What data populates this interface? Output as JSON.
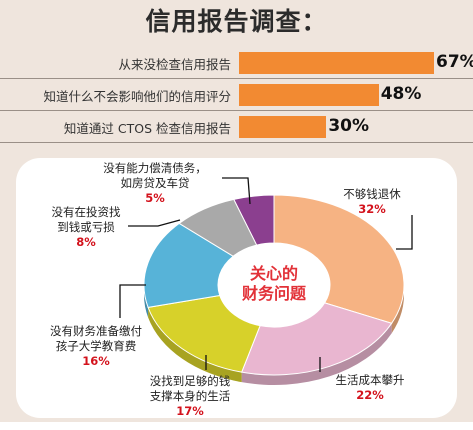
{
  "title": "信用报告调查：",
  "bar_color": "#f28a32",
  "bar_chart": {
    "type": "bar",
    "categories": [
      "从来没检查信用报告",
      "知道什么不会影响他们的信用评分",
      "知道通过 CTOS 检查信用报告"
    ],
    "values": [
      67,
      48,
      30
    ],
    "value_labels": [
      "67%",
      "48%",
      "30%"
    ]
  },
  "chart_data": {
    "type": "pie",
    "center_label_line1": "关心的",
    "center_label_line2": "财务问题",
    "slices": [
      {
        "label_lines": [
          "不够钱退休"
        ],
        "value": 32,
        "value_label": "32%",
        "color": "#f6b383"
      },
      {
        "label_lines": [
          "生活成本攀升"
        ],
        "value": 22,
        "value_label": "22%",
        "color": "#e9b6d0"
      },
      {
        "label_lines": [
          "没找到足够的钱",
          "支撑本身的生活"
        ],
        "value": 17,
        "value_label": "17%",
        "color": "#d7d12a"
      },
      {
        "label_lines": [
          "没有财务准备缴付",
          "孩子大学教育费"
        ],
        "value": 16,
        "value_label": "16%",
        "color": "#57b3d8"
      },
      {
        "label_lines": [
          "没有在投资找",
          "到钱或亏损"
        ],
        "value": 8,
        "value_label": "8%",
        "color": "#a9a9a9"
      },
      {
        "label_lines": [
          "没有能力偿清债务，",
          "如房贷及车贷"
        ],
        "value": 5,
        "value_label": "5%",
        "color": "#8b3f8f"
      }
    ]
  }
}
